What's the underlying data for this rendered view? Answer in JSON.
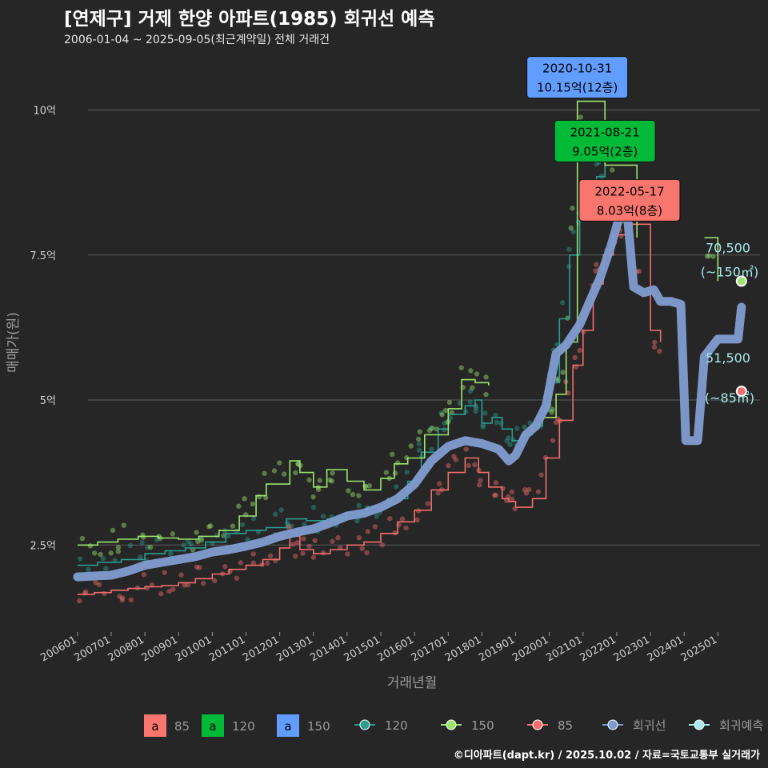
{
  "title": "[연제구] 거제 한양 아파트(1985) 회귀선 예측",
  "subtitle": "2006-01-04 ~ 2025-09-05(최근계약일) 전체 거래건",
  "footer": "©디아파트(dapt.kr) / 2025.10.02 / 자료=국토교통부 실거래가",
  "colors": {
    "background": "#262626",
    "grid": "#5a5a5a",
    "s85": "#f26d6d",
    "s120": "#2a9d8f",
    "s150": "#9be36e",
    "regression": "#7f9cd0",
    "prediction": "#a6eaea",
    "label85": "#f8766d",
    "label120": "#00ba38",
    "label150": "#619cff"
  },
  "chart_data": {
    "type": "line",
    "xlabel": "거래년월",
    "ylabel": "매매가(원)",
    "x_ticks": [
      "200601",
      "200701",
      "200801",
      "200901",
      "201001",
      "201101",
      "201201",
      "201301",
      "201401",
      "201501",
      "201601",
      "201701",
      "201801",
      "201901",
      "202001",
      "202101",
      "202201",
      "202301",
      "202401",
      "202501"
    ],
    "y_ticks": [
      {
        "value": 2.5,
        "label": "2.5억"
      },
      {
        "value": 5,
        "label": "5억"
      },
      {
        "value": 7.5,
        "label": "7.5억"
      },
      {
        "value": 10,
        "label": "10억"
      }
    ],
    "ylim": [
      1.0,
      11.0
    ],
    "xlim": [
      2005.6,
      2026.25
    ],
    "grid": true,
    "series": [
      {
        "name": "85",
        "color_key": "s85",
        "points": [
          [
            2006.0,
            1.65
          ],
          [
            2006.5,
            1.68
          ],
          [
            2007.0,
            1.72
          ],
          [
            2007.5,
            1.75
          ],
          [
            2008.0,
            1.78
          ],
          [
            2008.5,
            1.8
          ],
          [
            2009.0,
            1.85
          ],
          [
            2009.5,
            1.92
          ],
          [
            2010.0,
            2.0
          ],
          [
            2010.5,
            2.08
          ],
          [
            2011.0,
            2.15
          ],
          [
            2011.5,
            2.25
          ],
          [
            2012.0,
            2.45
          ],
          [
            2012.3,
            2.65
          ],
          [
            2012.6,
            2.42
          ],
          [
            2013.0,
            2.35
          ],
          [
            2013.5,
            2.42
          ],
          [
            2014.0,
            2.5
          ],
          [
            2014.5,
            2.55
          ],
          [
            2015.0,
            2.7
          ],
          [
            2015.5,
            2.9
          ],
          [
            2016.0,
            3.1
          ],
          [
            2016.5,
            3.45
          ],
          [
            2017.0,
            3.75
          ],
          [
            2017.5,
            4.0
          ],
          [
            2017.9,
            3.75
          ],
          [
            2018.2,
            3.5
          ],
          [
            2018.6,
            3.3
          ],
          [
            2018.8,
            3.25
          ],
          [
            2019.0,
            3.15
          ],
          [
            2019.5,
            3.3
          ],
          [
            2019.9,
            4.0
          ],
          [
            2020.3,
            4.65
          ],
          [
            2020.7,
            5.6
          ],
          [
            2021.0,
            6.2
          ],
          [
            2021.3,
            7.0
          ],
          [
            2021.6,
            7.5
          ],
          [
            2021.9,
            7.85
          ],
          [
            2022.38,
            8.03
          ],
          [
            2023.0,
            6.2
          ],
          [
            2023.3,
            6.0
          ],
          [
            2024.9,
            5.15
          ]
        ]
      },
      {
        "name": "120",
        "color_key": "s120",
        "points": [
          [
            2006.0,
            2.15
          ],
          [
            2006.6,
            2.2
          ],
          [
            2007.3,
            2.25
          ],
          [
            2008.0,
            2.35
          ],
          [
            2008.6,
            2.4
          ],
          [
            2009.2,
            2.45
          ],
          [
            2009.8,
            2.55
          ],
          [
            2010.4,
            2.7
          ],
          [
            2011.0,
            2.75
          ],
          [
            2011.6,
            2.8
          ],
          [
            2012.2,
            2.95
          ],
          [
            2012.8,
            2.92
          ],
          [
            2013.4,
            2.95
          ],
          [
            2014.0,
            3.05
          ],
          [
            2014.6,
            3.15
          ],
          [
            2015.2,
            3.3
          ],
          [
            2015.8,
            3.6
          ],
          [
            2016.2,
            4.1
          ],
          [
            2016.7,
            4.5
          ],
          [
            2017.0,
            4.75
          ],
          [
            2017.5,
            4.9
          ],
          [
            2017.8,
            5.0
          ],
          [
            2018.0,
            4.6
          ],
          [
            2018.3,
            4.7
          ],
          [
            2018.6,
            4.5
          ],
          [
            2018.9,
            4.3
          ],
          [
            2019.2,
            4.4
          ],
          [
            2019.5,
            4.55
          ],
          [
            2019.8,
            4.8
          ],
          [
            2020.0,
            5.3
          ],
          [
            2020.3,
            6.4
          ],
          [
            2020.6,
            7.5
          ],
          [
            2020.9,
            8.2
          ],
          [
            2021.2,
            8.7
          ],
          [
            2021.4,
            8.85
          ],
          [
            2021.65,
            9.05
          ],
          [
            2024.9,
            4.3
          ]
        ]
      },
      {
        "name": "150",
        "color_key": "s150",
        "points": [
          [
            2006.0,
            2.5
          ],
          [
            2006.6,
            2.55
          ],
          [
            2007.2,
            2.6
          ],
          [
            2007.8,
            2.65
          ],
          [
            2008.4,
            2.62
          ],
          [
            2009.0,
            2.6
          ],
          [
            2009.6,
            2.65
          ],
          [
            2010.2,
            2.75
          ],
          [
            2010.8,
            3.0
          ],
          [
            2011.3,
            3.35
          ],
          [
            2011.6,
            3.55
          ],
          [
            2012.3,
            3.95
          ],
          [
            2012.6,
            3.75
          ],
          [
            2013.0,
            3.5
          ],
          [
            2013.4,
            3.8
          ],
          [
            2014.0,
            3.6
          ],
          [
            2014.5,
            3.45
          ],
          [
            2015.0,
            3.65
          ],
          [
            2015.4,
            3.9
          ],
          [
            2015.8,
            4.0
          ],
          [
            2016.3,
            4.4
          ],
          [
            2016.7,
            4.4
          ],
          [
            2017.0,
            4.85
          ],
          [
            2017.4,
            5.35
          ],
          [
            2017.8,
            5.3
          ],
          [
            2018.2,
            5.25
          ],
          [
            2019.8,
            4.7
          ],
          [
            2020.2,
            5.1
          ],
          [
            2020.5,
            6.0
          ],
          [
            2020.83,
            10.15
          ],
          [
            2021.65,
            9.05
          ],
          [
            2022.6,
            7.8
          ],
          [
            2024.6,
            7.8
          ],
          [
            2025.0,
            7.05
          ]
        ]
      },
      {
        "name": "회귀선",
        "color_key": "regression",
        "points": [
          [
            2006.0,
            1.95
          ],
          [
            2007.0,
            1.98
          ],
          [
            2007.5,
            2.05
          ],
          [
            2008.0,
            2.15
          ],
          [
            2008.5,
            2.2
          ],
          [
            2009.0,
            2.25
          ],
          [
            2009.5,
            2.3
          ],
          [
            2010.0,
            2.38
          ],
          [
            2010.5,
            2.42
          ],
          [
            2011.0,
            2.48
          ],
          [
            2011.5,
            2.55
          ],
          [
            2012.0,
            2.65
          ],
          [
            2012.5,
            2.72
          ],
          [
            2013.0,
            2.78
          ],
          [
            2013.5,
            2.88
          ],
          [
            2014.0,
            3.0
          ],
          [
            2014.5,
            3.05
          ],
          [
            2015.0,
            3.15
          ],
          [
            2015.5,
            3.3
          ],
          [
            2016.0,
            3.55
          ],
          [
            2016.5,
            3.95
          ],
          [
            2017.0,
            4.2
          ],
          [
            2017.5,
            4.3
          ],
          [
            2018.0,
            4.25
          ],
          [
            2018.5,
            4.15
          ],
          [
            2018.8,
            3.95
          ],
          [
            2019.0,
            4.05
          ],
          [
            2019.3,
            4.4
          ],
          [
            2019.6,
            4.55
          ],
          [
            2019.9,
            4.9
          ],
          [
            2020.2,
            5.8
          ],
          [
            2020.5,
            5.95
          ],
          [
            2020.9,
            6.3
          ],
          [
            2021.2,
            6.7
          ],
          [
            2021.5,
            7.1
          ],
          [
            2021.8,
            7.6
          ],
          [
            2022.1,
            8.2
          ],
          [
            2022.3,
            8.3
          ],
          [
            2022.5,
            6.95
          ],
          [
            2022.8,
            6.85
          ],
          [
            2023.1,
            6.9
          ],
          [
            2023.3,
            6.7
          ],
          [
            2023.6,
            6.7
          ],
          [
            2023.9,
            6.65
          ],
          [
            2024.05,
            4.3
          ],
          [
            2024.4,
            4.3
          ],
          [
            2024.6,
            5.75
          ],
          [
            2025.0,
            6.05
          ],
          [
            2025.6,
            6.05
          ],
          [
            2025.7,
            6.6
          ]
        ]
      }
    ],
    "callouts": [
      {
        "date": "2020-10-31",
        "value": "10.15억(12층)",
        "x": 2020.83,
        "y": 10.15,
        "color_key": "label150"
      },
      {
        "date": "2021-08-21",
        "value": "9.05억(2층)",
        "x": 2021.65,
        "y": 9.05,
        "color_key": "label120"
      },
      {
        "date": "2022-05-17",
        "value": "8.03억(8층)",
        "x": 2022.38,
        "y": 8.03,
        "color_key": "label85"
      }
    ],
    "predictions": [
      {
        "value": "70,500",
        "size": "(~150㎡)",
        "y": 7.05,
        "color_key": "s150"
      },
      {
        "value": "51,500",
        "size": "(~85㎡)",
        "y": 5.15,
        "color_key": "s85"
      }
    ],
    "legend": {
      "placement": "bottom",
      "label_items": [
        {
          "letter": "a",
          "text": "85",
          "color_key": "label85"
        },
        {
          "letter": "a",
          "text": "120",
          "color_key": "label120"
        },
        {
          "letter": "a",
          "text": "150",
          "color_key": "label150"
        }
      ],
      "line_items": [
        {
          "text": "120",
          "color_key": "s120"
        },
        {
          "text": "150",
          "color_key": "s150"
        },
        {
          "text": "85",
          "color_key": "s85"
        },
        {
          "text": "회귀선",
          "color_key": "regression"
        },
        {
          "text": "회귀예측",
          "color_key": "prediction"
        }
      ]
    }
  }
}
